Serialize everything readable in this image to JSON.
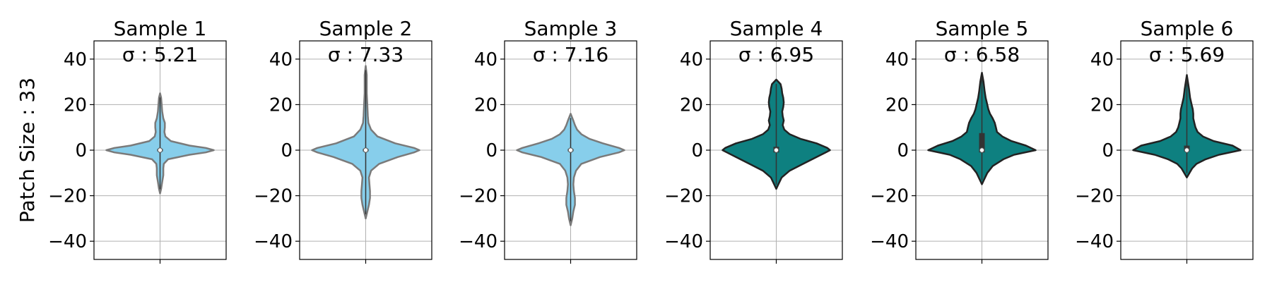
{
  "figure": {
    "ylabel": "Patch Size : 33"
  },
  "chart_data": {
    "type": "violin",
    "ylim": [
      -48,
      48
    ],
    "yticks": [
      -40,
      -20,
      0,
      20,
      40
    ],
    "ytick_labels": [
      "−40",
      "−20",
      "0",
      "20",
      "40"
    ],
    "grid": true,
    "median": 0,
    "series": [
      {
        "title": "Sample 1",
        "annotation": "σ : 5.21",
        "sigma": 5.21,
        "color": "#87ceeb",
        "edge": "#7a7a7a",
        "range": [
          -19,
          25
        ],
        "iqr": [
          -0.5,
          0.5
        ],
        "profile": [
          [
            -19,
            0
          ],
          [
            -17,
            0.02
          ],
          [
            -14,
            0.04
          ],
          [
            -11,
            0.06
          ],
          [
            -8,
            0.06
          ],
          [
            -6,
            0.07
          ],
          [
            -4,
            0.15
          ],
          [
            -2,
            0.55
          ],
          [
            -1,
            0.85
          ],
          [
            0,
            1
          ],
          [
            1,
            0.85
          ],
          [
            2,
            0.55
          ],
          [
            4,
            0.2
          ],
          [
            6,
            0.1
          ],
          [
            8,
            0.08
          ],
          [
            10,
            0.09
          ],
          [
            12,
            0.09
          ],
          [
            14,
            0.06
          ],
          [
            17,
            0.04
          ],
          [
            20,
            0.03
          ],
          [
            23,
            0.02
          ],
          [
            25,
            0
          ]
        ]
      },
      {
        "title": "Sample 2",
        "annotation": "σ : 7.33",
        "sigma": 7.33,
        "color": "#87ceeb",
        "edge": "#7a7a7a",
        "range": [
          -30,
          37
        ],
        "iqr": [
          -0.5,
          0.5
        ],
        "profile": [
          [
            -30,
            0
          ],
          [
            -27,
            0.03
          ],
          [
            -24,
            0.06
          ],
          [
            -21,
            0.08
          ],
          [
            -18,
            0.08
          ],
          [
            -15,
            0.07
          ],
          [
            -12,
            0.06
          ],
          [
            -9,
            0.1
          ],
          [
            -6,
            0.25
          ],
          [
            -3,
            0.6
          ],
          [
            -1,
            0.9
          ],
          [
            0,
            1
          ],
          [
            1,
            0.9
          ],
          [
            3,
            0.55
          ],
          [
            6,
            0.22
          ],
          [
            9,
            0.1
          ],
          [
            12,
            0.05
          ],
          [
            15,
            0.04
          ],
          [
            20,
            0.03
          ],
          [
            25,
            0.02
          ],
          [
            30,
            0.02
          ],
          [
            33,
            0.02
          ],
          [
            37,
            0
          ]
        ]
      },
      {
        "title": "Sample 3",
        "annotation": "σ : 7.16",
        "sigma": 7.16,
        "color": "#87ceeb",
        "edge": "#7a7a7a",
        "range": [
          -33,
          16
        ],
        "iqr": [
          -0.5,
          0.5
        ],
        "profile": [
          [
            -33,
            0
          ],
          [
            -30,
            0.03
          ],
          [
            -27,
            0.05
          ],
          [
            -24,
            0.08
          ],
          [
            -21,
            0.08
          ],
          [
            -18,
            0.06
          ],
          [
            -15,
            0.05
          ],
          [
            -12,
            0.06
          ],
          [
            -9,
            0.1
          ],
          [
            -6,
            0.2
          ],
          [
            -3,
            0.55
          ],
          [
            -1,
            0.9
          ],
          [
            0,
            1
          ],
          [
            1,
            0.9
          ],
          [
            3,
            0.6
          ],
          [
            5,
            0.35
          ],
          [
            7,
            0.2
          ],
          [
            9,
            0.12
          ],
          [
            11,
            0.08
          ],
          [
            13,
            0.05
          ],
          [
            16,
            0
          ]
        ]
      },
      {
        "title": "Sample 4",
        "annotation": "σ : 6.95",
        "sigma": 6.95,
        "color": "#0e8080",
        "edge": "#222222",
        "range": [
          -17,
          31
        ],
        "iqr": [
          -1,
          1.5
        ],
        "profile": [
          [
            -17,
            0
          ],
          [
            -15,
            0.04
          ],
          [
            -12,
            0.1
          ],
          [
            -9,
            0.25
          ],
          [
            -6,
            0.5
          ],
          [
            -3,
            0.75
          ],
          [
            -1,
            0.92
          ],
          [
            0,
            1
          ],
          [
            1,
            0.95
          ],
          [
            3,
            0.75
          ],
          [
            5,
            0.45
          ],
          [
            7,
            0.25
          ],
          [
            9,
            0.15
          ],
          [
            11,
            0.12
          ],
          [
            13,
            0.14
          ],
          [
            15,
            0.12
          ],
          [
            17,
            0.11
          ],
          [
            19,
            0.13
          ],
          [
            21,
            0.14
          ],
          [
            23,
            0.13
          ],
          [
            25,
            0.11
          ],
          [
            27,
            0.1
          ],
          [
            29,
            0.08
          ],
          [
            31,
            0
          ]
        ]
      },
      {
        "title": "Sample 5",
        "annotation": "σ : 6.58",
        "sigma": 6.58,
        "color": "#0e8080",
        "edge": "#222222",
        "range": [
          -15,
          34
        ],
        "iqr": [
          -1,
          7.5
        ],
        "profile": [
          [
            -15,
            0
          ],
          [
            -13,
            0.04
          ],
          [
            -10,
            0.1
          ],
          [
            -7,
            0.2
          ],
          [
            -4,
            0.4
          ],
          [
            -2,
            0.6
          ],
          [
            0,
            1
          ],
          [
            2,
            0.82
          ],
          [
            4,
            0.55
          ],
          [
            6,
            0.38
          ],
          [
            8,
            0.28
          ],
          [
            10,
            0.26
          ],
          [
            12,
            0.24
          ],
          [
            14,
            0.2
          ],
          [
            16,
            0.15
          ],
          [
            18,
            0.12
          ],
          [
            20,
            0.1
          ],
          [
            23,
            0.07
          ],
          [
            26,
            0.05
          ],
          [
            30,
            0.03
          ],
          [
            34,
            0
          ]
        ]
      },
      {
        "title": "Sample 6",
        "annotation": "σ : 5.69",
        "sigma": 5.69,
        "color": "#0e8080",
        "edge": "#222222",
        "range": [
          -12,
          33
        ],
        "iqr": [
          -0.5,
          2
        ],
        "profile": [
          [
            -12,
            0
          ],
          [
            -10,
            0.05
          ],
          [
            -8,
            0.1
          ],
          [
            -6,
            0.18
          ],
          [
            -4,
            0.35
          ],
          [
            -2,
            0.6
          ],
          [
            0,
            1
          ],
          [
            2,
            0.85
          ],
          [
            4,
            0.5
          ],
          [
            6,
            0.3
          ],
          [
            8,
            0.2
          ],
          [
            10,
            0.16
          ],
          [
            12,
            0.14
          ],
          [
            14,
            0.12
          ],
          [
            16,
            0.12
          ],
          [
            18,
            0.11
          ],
          [
            20,
            0.09
          ],
          [
            23,
            0.06
          ],
          [
            27,
            0.04
          ],
          [
            30,
            0.02
          ],
          [
            33,
            0
          ]
        ]
      }
    ]
  }
}
